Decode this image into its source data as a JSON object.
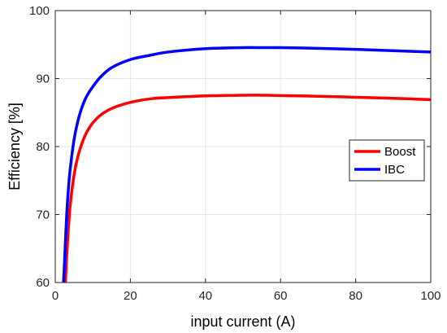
{
  "chart_data": {
    "type": "line",
    "title": "",
    "xlabel": "input current (A)",
    "ylabel": "Efficiency [%]",
    "xlim": [
      0,
      100
    ],
    "ylim": [
      60,
      100
    ],
    "x_ticks": [
      0,
      20,
      40,
      60,
      80,
      100
    ],
    "y_ticks": [
      60,
      70,
      80,
      90,
      100
    ],
    "grid": true,
    "legend_position": "right",
    "series": [
      {
        "name": "Boost",
        "color": "#ff0000",
        "x": [
          2.7,
          3,
          3.5,
          4,
          5,
          6,
          7,
          8,
          9,
          10,
          12,
          15,
          20,
          25,
          30,
          40,
          50,
          55,
          60,
          70,
          80,
          90,
          100
        ],
        "y": [
          60,
          63.5,
          68,
          71.5,
          75.8,
          78.5,
          80.3,
          81.7,
          82.7,
          83.5,
          84.6,
          85.6,
          86.5,
          87.0,
          87.2,
          87.45,
          87.55,
          87.55,
          87.5,
          87.4,
          87.25,
          87.1,
          86.9
        ]
      },
      {
        "name": "IBC",
        "color": "#0000ff",
        "x": [
          2.2,
          2.5,
          3,
          3.5,
          4,
          5,
          6,
          7,
          8,
          9,
          10,
          12,
          15,
          20,
          25,
          30,
          40,
          50,
          55,
          60,
          70,
          80,
          90,
          100
        ],
        "y": [
          60,
          63.5,
          69.5,
          73.8,
          76.8,
          81.0,
          83.7,
          85.6,
          87.0,
          88.0,
          88.8,
          90.2,
          91.6,
          92.8,
          93.4,
          93.9,
          94.4,
          94.55,
          94.55,
          94.55,
          94.45,
          94.3,
          94.1,
          93.9
        ]
      }
    ]
  }
}
